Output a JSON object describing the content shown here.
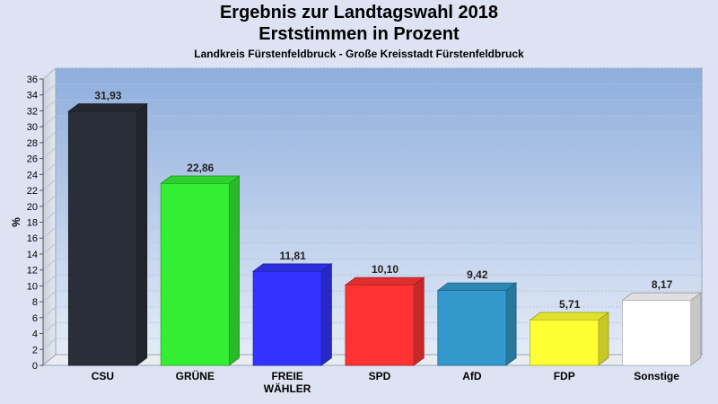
{
  "chart_data": {
    "type": "bar",
    "title": "Ergebnis zur Landtagswahl 2018",
    "title_line2": "Erststimmen in Prozent",
    "subtitle": "Landkreis Fürstenfeldbruck - Große Kreisstadt Fürstenfeldbruck",
    "ylabel": "%",
    "xlabel": "",
    "ylim": [
      0,
      36
    ],
    "ytick_step": 2,
    "grid": true,
    "categories": [
      [
        "CSU"
      ],
      [
        "GRÜNE"
      ],
      [
        "FREIE",
        "WÄHLER"
      ],
      [
        "SPD"
      ],
      [
        "AfD"
      ],
      [
        "FDP"
      ],
      [
        "Sonstige"
      ]
    ],
    "values": [
      31.93,
      22.86,
      11.81,
      10.1,
      9.42,
      5.71,
      8.17
    ],
    "value_labels": [
      "31,93",
      "22,86",
      "11,81",
      "10,10",
      "9,42",
      "5,71",
      "8,17"
    ],
    "colors": [
      "#2a2e38",
      "#33ee33",
      "#3333ff",
      "#ff3333",
      "#3399cc",
      "#ffff33",
      "#ffffff"
    ]
  }
}
